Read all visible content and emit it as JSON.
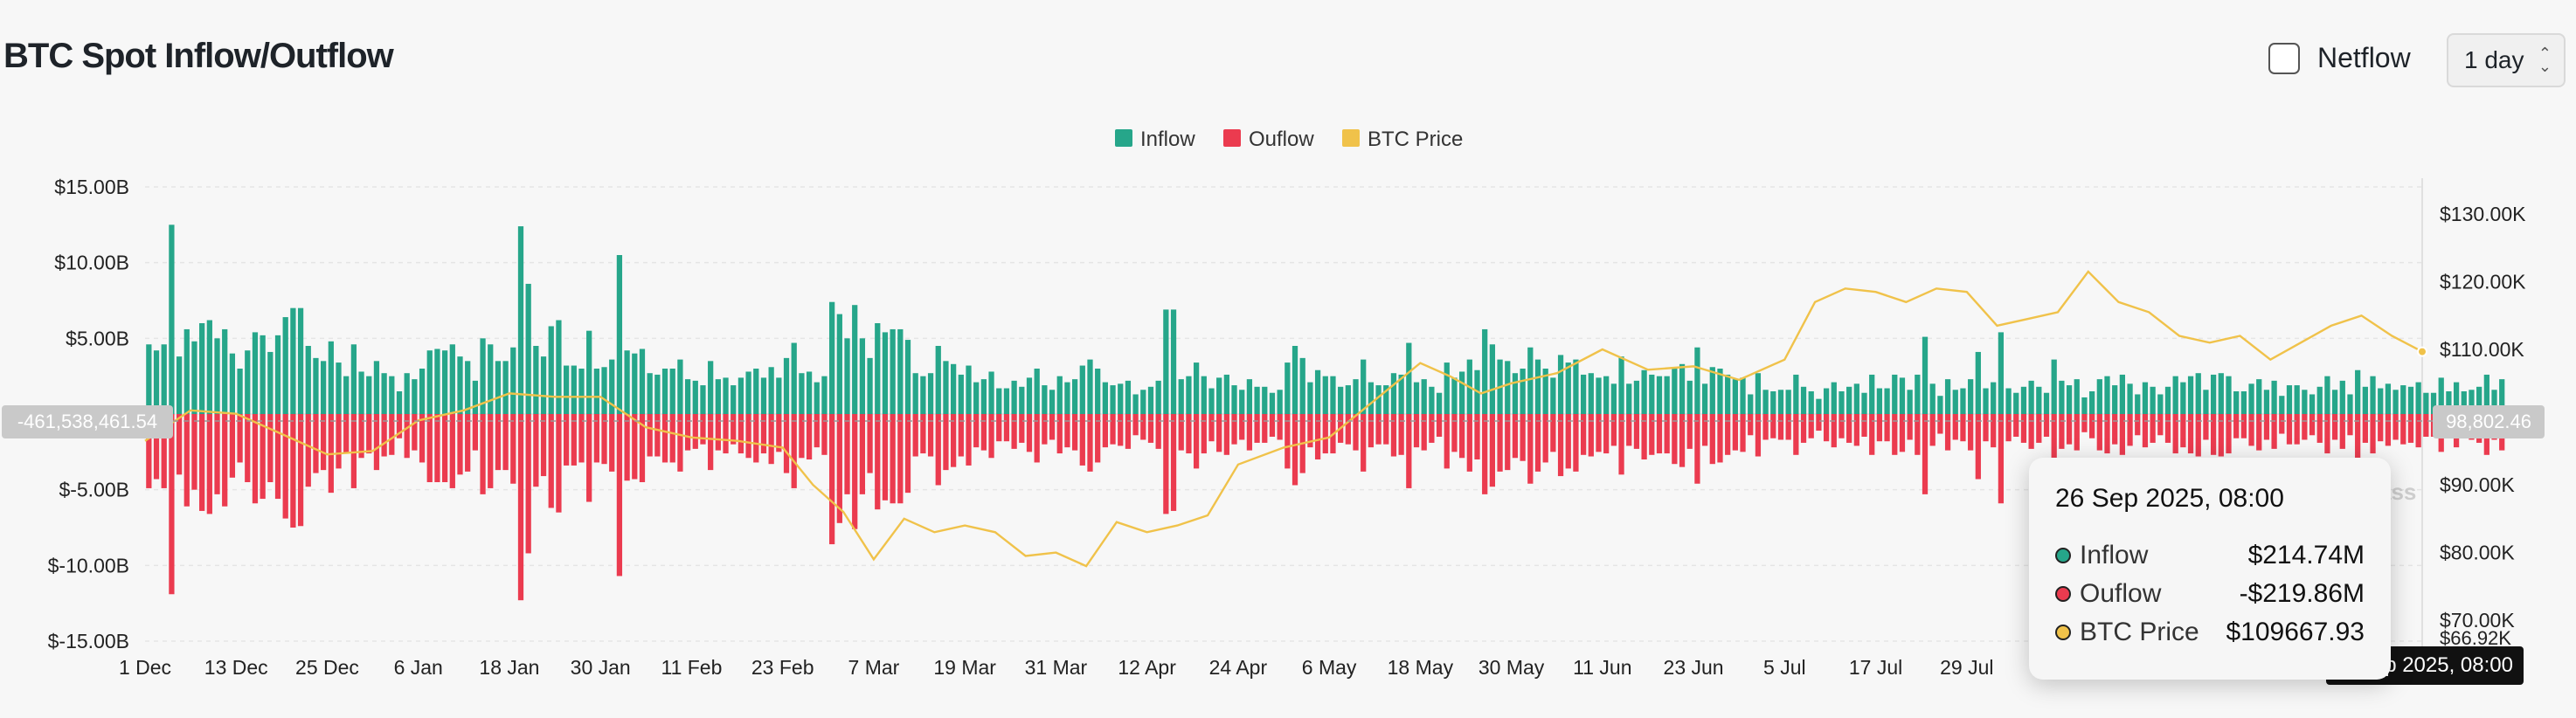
{
  "header": {
    "title": "BTC Spot Inflow/Outflow",
    "netflow_label": "Netflow",
    "interval_value": "1 day"
  },
  "colors": {
    "inflow": "#26a68a",
    "outflow": "#eb3b4f",
    "price": "#f0c24a",
    "grid": "#e5e5e5"
  },
  "crosshair": {
    "left_value": "-461,538,461.54",
    "right_value": "98,802.46",
    "x_value": "26 Sep 2025, 08:00",
    "y2_edge_value": "$66.92K",
    "watermark_fragment": "ass"
  },
  "tooltip": {
    "date": "26 Sep 2025, 08:00",
    "rows": [
      {
        "label": "Inflow",
        "value": "$214.74M",
        "color": "#26a68a"
      },
      {
        "label": "Ouflow",
        "value": "-$219.86M",
        "color": "#eb3b4f"
      },
      {
        "label": "BTC Price",
        "value": "$109667.93",
        "color": "#f0c24a"
      }
    ]
  },
  "chart_data": {
    "type": "bar",
    "title": "BTC Spot Inflow/Outflow",
    "legend": {
      "position": "top-center",
      "entries": [
        "Inflow",
        "Ouflow",
        "BTC Price"
      ]
    },
    "x_tick_labels": [
      "1 Dec",
      "13 Dec",
      "25 Dec",
      "6 Jan",
      "18 Jan",
      "30 Jan",
      "11 Feb",
      "23 Feb",
      "7 Mar",
      "19 Mar",
      "31 Mar",
      "12 Apr",
      "24 Apr",
      "6 May",
      "18 May",
      "30 May",
      "11 Jun",
      "23 Jun",
      "5 Jul",
      "17 Jul",
      "29 Jul"
    ],
    "x_tick_days": [
      0,
      12,
      24,
      36,
      48,
      60,
      72,
      84,
      96,
      108,
      120,
      132,
      144,
      156,
      168,
      180,
      192,
      204,
      216,
      228,
      240
    ],
    "x_range_days": [
      0,
      300
    ],
    "y_left": {
      "ticks": [
        15,
        10,
        5,
        0,
        -5,
        -10,
        -15
      ],
      "labels": [
        "$15.00B",
        "$10.00B",
        "$5.00B",
        "",
        "$-5.00B",
        "$-10.00B",
        "$-15.00B"
      ],
      "range": [
        -15,
        15
      ],
      "unit": "B USD"
    },
    "y_right": {
      "ticks": [
        130,
        120,
        110,
        90,
        80,
        70
      ],
      "labels": [
        "$130.00K",
        "$120.00K",
        "$110.00K",
        "$90.00K",
        "$80.00K",
        "$70.00K"
      ],
      "range": [
        66.92,
        134
      ],
      "unit": "K USD"
    },
    "grid": true,
    "series": [
      {
        "name": "Inflow",
        "values": [
          4.6,
          4.2,
          4.6,
          12.5,
          3.8,
          5.6,
          4.8,
          6,
          6.2,
          5,
          5.6,
          4,
          3,
          4.2,
          5.4,
          5.2,
          4.1,
          5.2,
          6.4,
          7,
          7,
          4.5,
          3.7,
          3.5,
          4.8,
          3.4,
          2.5,
          4.6,
          2.8,
          2.5,
          3.5,
          2.7,
          2.5,
          1.5,
          2.7,
          2.3,
          3,
          4.2,
          4.3,
          4.2,
          4.6,
          3.8,
          3.5,
          2.2,
          5,
          4.6,
          3.5,
          3.5,
          4.4,
          12.4,
          8.6,
          4.5,
          3.8,
          5.8,
          6.2,
          3.2,
          3.2,
          3,
          5.5,
          3,
          3.1,
          3.6,
          10.5,
          4.2,
          4,
          4.3,
          2.7,
          2.6,
          3,
          3,
          3.6,
          2.3,
          2.2,
          1.9,
          3.5,
          2.3,
          2.4,
          1.9,
          2.4,
          2.8,
          3,
          2.4,
          3.1,
          2.4,
          3.7,
          4.7,
          2.7,
          2.8,
          2.1,
          2.5,
          7.4,
          6.6,
          5,
          7.2,
          5,
          3.7,
          6,
          5.4,
          5.6,
          5.6,
          4.9,
          2.7,
          2.5,
          2.7,
          4.5,
          3.5,
          3.3,
          2.6,
          3.2,
          2.1,
          2.3,
          2.8,
          1.7,
          1.7,
          2.2,
          1.8,
          2.4,
          3,
          1.9,
          1.6,
          2.5,
          2.1,
          2.3,
          3.2,
          3.6,
          3,
          2.1,
          1.9,
          2,
          2.2,
          1.3,
          1.6,
          1.8,
          2.2,
          6.9,
          6.9,
          2.3,
          2.5,
          3.4,
          2.5,
          1.7,
          2.4,
          2.6,
          1.9,
          1.6,
          2.3,
          1.8,
          1.8,
          1.4,
          1.6,
          3.4,
          4.5,
          3.7,
          2.1,
          2.9,
          2.5,
          2.5,
          1.8,
          1.9,
          2.3,
          3.6,
          2.1,
          1.9,
          1.9,
          2.7,
          2.6,
          4.7,
          2.1,
          2.3,
          1.8,
          1.4,
          3.4,
          2.4,
          2.8,
          3.6,
          2.9,
          5.6,
          4.6,
          3.6,
          3.5,
          2.7,
          3,
          4.4,
          3.6,
          3,
          2.4,
          3.9,
          3.4,
          3.6,
          2.6,
          2.7,
          2.4,
          2.5,
          2,
          3.8,
          2,
          2.2,
          2.9,
          2.6,
          2.5,
          2.5,
          3.1,
          3.3,
          2.2,
          4.4,
          2,
          3.1,
          3,
          2.6,
          2.3,
          2.4,
          1.3,
          2.7,
          1.6,
          1.5,
          1.6,
          1.6,
          2.6,
          1.8,
          1.5,
          1,
          1.7,
          2.1,
          1.5,
          1.8,
          2,
          1.4,
          2.6,
          1.7,
          1.7,
          2.6,
          2.4,
          1.6,
          2.6,
          5.1,
          2,
          1.2,
          2.3,
          1.6,
          1.7,
          2.3,
          4.1,
          1.7,
          2.1,
          5.4,
          1.7,
          1.4,
          1.8,
          2.2,
          1.8,
          1.4,
          3.6,
          2.2,
          1.9,
          2.3,
          1.1,
          1.5,
          2.3,
          2.5,
          1.9,
          2.6,
          2,
          1.3,
          2.1,
          1.8,
          1.3,
          1.8,
          2.5,
          2.1,
          2.5,
          2.7,
          1.6,
          2.6,
          2.7,
          2.5,
          1.5,
          1.5,
          2,
          2.3,
          1.6,
          2.2,
          1.2,
          1.9,
          1.9,
          1.6,
          1.3,
          1.8,
          2.5,
          1.6,
          2.2,
          1.3,
          2.9,
          1.8,
          2.5,
          1.7,
          2,
          1.6,
          1.9,
          1.8,
          2.1,
          1.4,
          1.4,
          2.4,
          1.5,
          2.1,
          1.5,
          1.6,
          1.8,
          2.6,
          1.6,
          2.3
        ]
      },
      {
        "name": "Ouflow",
        "values": [
          -4.9,
          -4.3,
          -4.9,
          -11.9,
          -4,
          -6.1,
          -5,
          -6.4,
          -6.6,
          -5.3,
          -6.1,
          -4.2,
          -3.2,
          -4.5,
          -5.9,
          -5.6,
          -4.5,
          -5.6,
          -6.9,
          -7.5,
          -7.4,
          -4.8,
          -3.9,
          -3.7,
          -5.2,
          -3.6,
          -2.6,
          -4.9,
          -2.9,
          -2.6,
          -3.7,
          -2.8,
          -2.7,
          -1.6,
          -2.9,
          -2.4,
          -3.2,
          -4.5,
          -4.5,
          -4.5,
          -4.9,
          -4,
          -3.8,
          -2.4,
          -5.3,
          -4.9,
          -3.7,
          -3.7,
          -4.6,
          -12.3,
          -9.2,
          -4.8,
          -4.1,
          -6.2,
          -6.5,
          -3.4,
          -3.4,
          -3.2,
          -5.8,
          -3.2,
          -3.3,
          -3.8,
          -10.7,
          -4.4,
          -4.3,
          -4.5,
          -2.8,
          -2.8,
          -3.2,
          -3.2,
          -3.8,
          -2.4,
          -2.3,
          -2,
          -3.7,
          -2.4,
          -2.6,
          -2,
          -2.6,
          -2.9,
          -3.2,
          -2.6,
          -3.3,
          -2.5,
          -3.9,
          -4.9,
          -2.9,
          -3,
          -2.2,
          -2.7,
          -8.6,
          -7.2,
          -5.3,
          -7.6,
          -5.3,
          -3.9,
          -6.3,
          -5.7,
          -5.9,
          -5.9,
          -5.2,
          -2.8,
          -2.6,
          -2.8,
          -4.7,
          -3.7,
          -3.5,
          -2.8,
          -3.4,
          -2.2,
          -2.4,
          -2.9,
          -1.8,
          -1.8,
          -2.3,
          -1.9,
          -2.5,
          -3.2,
          -2,
          -1.7,
          -2.6,
          -2.2,
          -2.4,
          -3.4,
          -3.8,
          -3.2,
          -2.2,
          -2,
          -2.1,
          -2.3,
          -1.4,
          -1.7,
          -1.9,
          -2.3,
          -6.6,
          -6.4,
          -2.4,
          -2.6,
          -3.6,
          -2.6,
          -1.8,
          -2.5,
          -2.7,
          -2,
          -1.7,
          -2.4,
          -1.9,
          -1.9,
          -1.5,
          -1.7,
          -3.6,
          -4.7,
          -3.9,
          -2.2,
          -3,
          -2.6,
          -2.6,
          -1.9,
          -2,
          -2.4,
          -3.8,
          -2.2,
          -2,
          -2,
          -2.8,
          -2.7,
          -4.9,
          -2.2,
          -2.4,
          -1.9,
          -1.5,
          -3.6,
          -2.5,
          -2.9,
          -3.8,
          -3,
          -5.3,
          -4.8,
          -3.8,
          -3.7,
          -2.9,
          -3.1,
          -4.6,
          -3.8,
          -3.2,
          -2.5,
          -4.1,
          -3.6,
          -3.8,
          -2.7,
          -2.8,
          -2.5,
          -2.6,
          -2.1,
          -4,
          -2.1,
          -2.3,
          -3,
          -2.7,
          -2.6,
          -2.6,
          -3.3,
          -3.5,
          -2.3,
          -4.6,
          -2.1,
          -3.3,
          -3.2,
          -2.7,
          -2.4,
          -2.5,
          -1.4,
          -2.8,
          -1.7,
          -1.6,
          -1.7,
          -1.7,
          -2.7,
          -1.9,
          -1.6,
          -1.1,
          -1.8,
          -2.2,
          -1.6,
          -1.9,
          -2.1,
          -1.5,
          -2.7,
          -1.8,
          -1.8,
          -2.7,
          -2.5,
          -1.7,
          -2.7,
          -5.3,
          -2.1,
          -1.3,
          -2.4,
          -1.7,
          -1.8,
          -2.4,
          -4.3,
          -1.8,
          -2.2,
          -5.9,
          -1.8,
          -1.5,
          -1.9,
          -2.3,
          -1.9,
          -1.5,
          -3.8,
          -2.3,
          -2,
          -2.4,
          -1.2,
          -1.6,
          -2.4,
          -2.6,
          -2,
          -2.7,
          -2.1,
          -1.4,
          -2.2,
          -1.9,
          -1.4,
          -1.9,
          -2.6,
          -2.2,
          -2.6,
          -2.8,
          -1.7,
          -2.7,
          -2.8,
          -2.6,
          -1.6,
          -1.6,
          -2.1,
          -2.4,
          -1.7,
          -2.3,
          -1.3,
          -2,
          -2,
          -1.7,
          -1.4,
          -1.9,
          -2.6,
          -1.7,
          -2.3,
          -1.4,
          -3,
          -1.9,
          -2.6,
          -1.8,
          -2.1,
          -1.7,
          -2,
          -1.9,
          -2.2,
          -1.5,
          -1.5,
          -2.5,
          -1.6,
          -2.2,
          -1.6,
          -1.7,
          -1.9,
          -2.7,
          -1.7,
          -2.4
        ]
      },
      {
        "name": "BTC Price",
        "x_days": [
          0,
          6,
          12,
          18,
          24,
          30,
          36,
          42,
          48,
          54,
          60,
          66,
          72,
          78,
          84,
          88,
          92,
          96,
          100,
          104,
          108,
          112,
          116,
          120,
          124,
          128,
          132,
          136,
          140,
          144,
          150,
          156,
          162,
          168,
          172,
          176,
          180,
          186,
          192,
          198,
          204,
          210,
          216,
          220,
          224,
          228,
          232,
          236,
          240,
          244,
          248,
          252,
          256,
          260,
          264,
          268,
          272,
          276,
          280,
          284,
          288,
          292,
          296,
          300
        ],
        "values": [
          96.5,
          101,
          100.5,
          97.5,
          94.5,
          95,
          99.5,
          101,
          103.5,
          103,
          103,
          98.5,
          97,
          96.5,
          95.5,
          90,
          86,
          79,
          85,
          83,
          84,
          83,
          79.5,
          80,
          78,
          84.5,
          83,
          84,
          85.5,
          93,
          95.5,
          97,
          102.5,
          108,
          106,
          103.5,
          105,
          106.5,
          110,
          107,
          107.5,
          105.5,
          108.5,
          117,
          119,
          118.5,
          117,
          119,
          118.5,
          113.5,
          114.5,
          115.5,
          121.5,
          117,
          115.5,
          112,
          111,
          112,
          108.5,
          111,
          113.5,
          115,
          112,
          109.67
        ]
      }
    ]
  }
}
